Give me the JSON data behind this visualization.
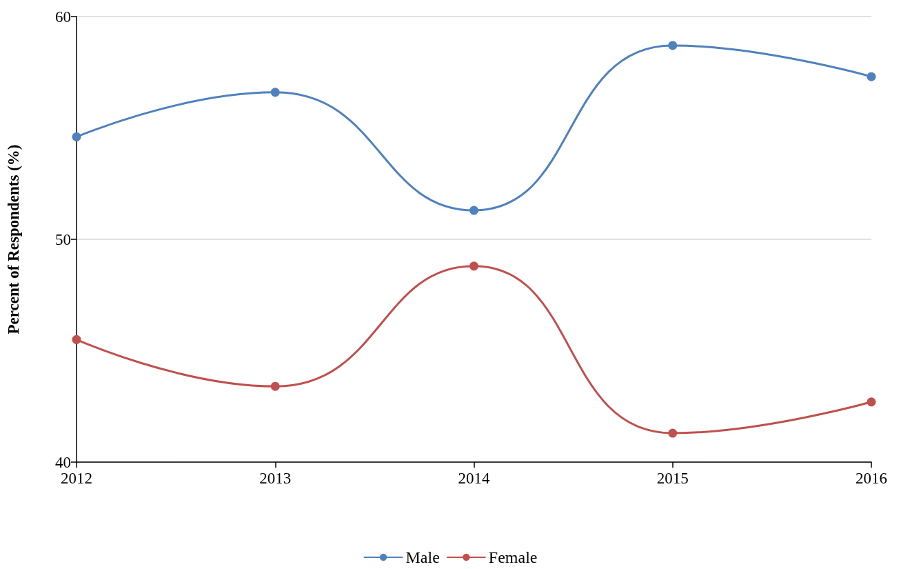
{
  "chart_data": {
    "type": "line",
    "ylabel": "Percent of Respondents (%)",
    "categories": [
      "2012",
      "2013",
      "2014",
      "2015",
      "2016"
    ],
    "series": [
      {
        "name": "Male",
        "color": "#4f81bd",
        "values": [
          54.6,
          56.6,
          51.3,
          58.7,
          57.3
        ]
      },
      {
        "name": "Female",
        "color": "#c0504d",
        "values": [
          45.5,
          43.4,
          48.8,
          41.3,
          42.7
        ]
      }
    ],
    "ylim": [
      40,
      60
    ],
    "yticks": [
      40,
      50,
      60
    ],
    "grid": "y",
    "legend": "bottom",
    "marker": "circle",
    "line_style": "solid"
  }
}
